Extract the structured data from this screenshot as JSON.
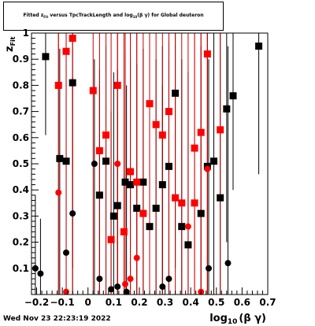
{
  "chart_data": {
    "type": "scatter",
    "title_main": "Fitted  z",
    "title_sub1": "Fit",
    "title_mid": "  versus TpcTrackLength and log",
    "title_sub2": "10",
    "title_end": "(β γ) for Global deuteron",
    "xlabel_main": "log",
    "xlabel_sub": "10",
    "xlabel_end": "(β γ)",
    "ylabel_main": "z",
    "ylabel_sub": "Fit",
    "xlim": [
      -0.22,
      0.7
    ],
    "ylim": [
      0,
      1.0
    ],
    "x_ticks": [
      -0.2,
      -0.1,
      0,
      0.1,
      0.2,
      0.3,
      0.4,
      0.5,
      0.6,
      0.7
    ],
    "x_tick_labels": [
      "−0.2",
      "−0.1",
      "0",
      "0.1",
      "0.2",
      "0.3",
      "0.4",
      "0.5",
      "0.6",
      "0.7"
    ],
    "y_ticks": [
      0.1,
      0.2,
      0.3,
      0.4,
      0.5,
      0.6,
      0.7,
      0.8,
      0.9,
      1.0
    ],
    "y_tick_labels": [
      "0.1",
      "0.2",
      "0.3",
      "0.4",
      "0.5",
      "0.6",
      "0.7",
      "0.8",
      "0.9",
      "1"
    ],
    "colors": {
      "black": "#000000",
      "red": "#ff0000",
      "red_line": "#cc0000"
    },
    "series": [
      {
        "marker": "circle",
        "color": "black",
        "points": [
          {
            "x": -0.205,
            "y": 0.1,
            "lo": 0.0,
            "hi": 0.38
          },
          {
            "x": -0.185,
            "y": 0.08,
            "lo": 0.0,
            "hi": 0.29
          },
          {
            "x": -0.085,
            "y": 0.16,
            "lo": 0.0,
            "hi": 0.72
          },
          {
            "x": -0.06,
            "y": 0.31,
            "lo": 0.0,
            "hi": 0.83
          },
          {
            "x": 0.025,
            "y": 0.5,
            "lo": 0.0,
            "hi": 0.9
          },
          {
            "x": 0.045,
            "y": 0.06,
            "lo": 0.0,
            "hi": 0.8
          },
          {
            "x": 0.09,
            "y": 0.02,
            "lo": 0.0,
            "hi": 0.7
          },
          {
            "x": 0.115,
            "y": 0.03,
            "lo": 0.0,
            "hi": 0.7
          },
          {
            "x": 0.15,
            "y": 0.01,
            "lo": 0.0,
            "hi": 0.8
          },
          {
            "x": 0.29,
            "y": 0.03,
            "lo": 0.0,
            "hi": 0.8
          },
          {
            "x": 0.315,
            "y": 0.06,
            "lo": 0.0,
            "hi": 0.9
          },
          {
            "x": 0.47,
            "y": 0.1,
            "lo": 0.0,
            "hi": 0.9
          },
          {
            "x": 0.545,
            "y": 0.12,
            "lo": 0.0,
            "hi": 0.95
          }
        ]
      },
      {
        "marker": "square",
        "color": "black",
        "points": [
          {
            "x": -0.165,
            "y": 0.91,
            "lo": 0.61,
            "hi": 1.0
          },
          {
            "x": -0.11,
            "y": 0.52,
            "lo": 0.0,
            "hi": 0.94
          },
          {
            "x": -0.085,
            "y": 0.51,
            "lo": 0.0,
            "hi": 0.96
          },
          {
            "x": -0.06,
            "y": 0.81,
            "lo": 0.1,
            "hi": 1.0
          },
          {
            "x": 0.045,
            "y": 0.38,
            "lo": 0.0,
            "hi": 0.86
          },
          {
            "x": 0.07,
            "y": 0.51,
            "lo": 0.0,
            "hi": 0.95
          },
          {
            "x": 0.1,
            "y": 0.3,
            "lo": 0.0,
            "hi": 0.85
          },
          {
            "x": 0.115,
            "y": 0.34,
            "lo": 0.0,
            "hi": 0.86
          },
          {
            "x": 0.145,
            "y": 0.43,
            "lo": 0.0,
            "hi": 0.92
          },
          {
            "x": 0.165,
            "y": 0.42,
            "lo": 0.0,
            "hi": 0.9
          },
          {
            "x": 0.19,
            "y": 0.33,
            "lo": 0.0,
            "hi": 0.88
          },
          {
            "x": 0.215,
            "y": 0.43,
            "lo": 0.0,
            "hi": 0.94
          },
          {
            "x": 0.24,
            "y": 0.26,
            "lo": 0.0,
            "hi": 0.85
          },
          {
            "x": 0.265,
            "y": 0.33,
            "lo": 0.0,
            "hi": 0.9
          },
          {
            "x": 0.29,
            "y": 0.42,
            "lo": 0.0,
            "hi": 0.95
          },
          {
            "x": 0.315,
            "y": 0.49,
            "lo": 0.0,
            "hi": 0.97
          },
          {
            "x": 0.34,
            "y": 0.77,
            "lo": 0.1,
            "hi": 1.0
          },
          {
            "x": 0.365,
            "y": 0.26,
            "lo": 0.0,
            "hi": 0.9
          },
          {
            "x": 0.39,
            "y": 0.19,
            "lo": 0.0,
            "hi": 0.85
          },
          {
            "x": 0.44,
            "y": 0.31,
            "lo": 0.0,
            "hi": 0.95
          },
          {
            "x": 0.465,
            "y": 0.49,
            "lo": 0.0,
            "hi": 1.0
          },
          {
            "x": 0.49,
            "y": 0.51,
            "lo": 0.0,
            "hi": 1.0
          },
          {
            "x": 0.515,
            "y": 0.37,
            "lo": 0.0,
            "hi": 1.0
          },
          {
            "x": 0.54,
            "y": 0.71,
            "lo": 0.2,
            "hi": 1.0
          },
          {
            "x": 0.565,
            "y": 0.76,
            "lo": 0.4,
            "hi": 1.0
          },
          {
            "x": 0.665,
            "y": 0.95,
            "lo": 0.46,
            "hi": 1.0
          }
        ]
      },
      {
        "marker": "circle",
        "color": "red",
        "points": [
          {
            "x": -0.115,
            "y": 0.39,
            "lo": 0.0,
            "hi": 1.0
          },
          {
            "x": -0.085,
            "y": 0.01,
            "lo": 0.0,
            "hi": 1.0
          },
          {
            "x": 0.115,
            "y": 0.5,
            "lo": 0.0,
            "hi": 1.0
          },
          {
            "x": 0.145,
            "y": 0.04,
            "lo": 0.0,
            "hi": 1.0
          },
          {
            "x": 0.165,
            "y": 0.06,
            "lo": 0.0,
            "hi": 1.0
          },
          {
            "x": 0.19,
            "y": 0.14,
            "lo": 0.0,
            "hi": 1.0
          },
          {
            "x": 0.39,
            "y": 0.26,
            "lo": 0.0,
            "hi": 1.0
          },
          {
            "x": 0.44,
            "y": 0.01,
            "lo": 0.0,
            "hi": 1.0
          },
          {
            "x": 0.465,
            "y": 0.48,
            "lo": 0.0,
            "hi": 1.0
          }
        ]
      },
      {
        "marker": "square",
        "color": "red",
        "points": [
          {
            "x": -0.115,
            "y": 0.8,
            "lo": 0.0,
            "hi": 1.0
          },
          {
            "x": -0.085,
            "y": 0.93,
            "lo": 0.0,
            "hi": 1.0
          },
          {
            "x": -0.06,
            "y": 0.98,
            "lo": 0.0,
            "hi": 1.0
          },
          {
            "x": 0.02,
            "y": 0.78,
            "lo": 0.0,
            "hi": 1.0
          },
          {
            "x": 0.045,
            "y": 0.55,
            "lo": 0.0,
            "hi": 1.0
          },
          {
            "x": 0.07,
            "y": 0.61,
            "lo": 0.0,
            "hi": 1.0
          },
          {
            "x": 0.09,
            "y": 0.21,
            "lo": 0.0,
            "hi": 1.0
          },
          {
            "x": 0.115,
            "y": 0.8,
            "lo": 0.0,
            "hi": 1.0
          },
          {
            "x": 0.14,
            "y": 0.24,
            "lo": 0.0,
            "hi": 1.0
          },
          {
            "x": 0.165,
            "y": 0.47,
            "lo": 0.0,
            "hi": 1.0
          },
          {
            "x": 0.19,
            "y": 0.43,
            "lo": 0.0,
            "hi": 1.0
          },
          {
            "x": 0.215,
            "y": 0.31,
            "lo": 0.0,
            "hi": 1.0
          },
          {
            "x": 0.24,
            "y": 0.73,
            "lo": 0.0,
            "hi": 1.0
          },
          {
            "x": 0.265,
            "y": 0.65,
            "lo": 0.0,
            "hi": 1.0
          },
          {
            "x": 0.29,
            "y": 0.61,
            "lo": 0.0,
            "hi": 1.0
          },
          {
            "x": 0.315,
            "y": 0.7,
            "lo": 0.0,
            "hi": 1.0
          },
          {
            "x": 0.34,
            "y": 0.37,
            "lo": 0.0,
            "hi": 1.0
          },
          {
            "x": 0.365,
            "y": 0.35,
            "lo": 0.0,
            "hi": 1.0
          },
          {
            "x": 0.415,
            "y": 0.35,
            "lo": 0.0,
            "hi": 1.0
          },
          {
            "x": 0.415,
            "y": 0.56,
            "lo": 0.0,
            "hi": 1.0
          },
          {
            "x": 0.44,
            "y": 0.62,
            "lo": 0.0,
            "hi": 1.0
          },
          {
            "x": 0.465,
            "y": 0.92,
            "lo": 0.0,
            "hi": 1.0
          },
          {
            "x": 0.515,
            "y": 0.63,
            "lo": 0.0,
            "hi": 1.0
          }
        ]
      }
    ]
  },
  "footer": {
    "timestamp": "Wed Nov 23 22:23:19 2022"
  }
}
